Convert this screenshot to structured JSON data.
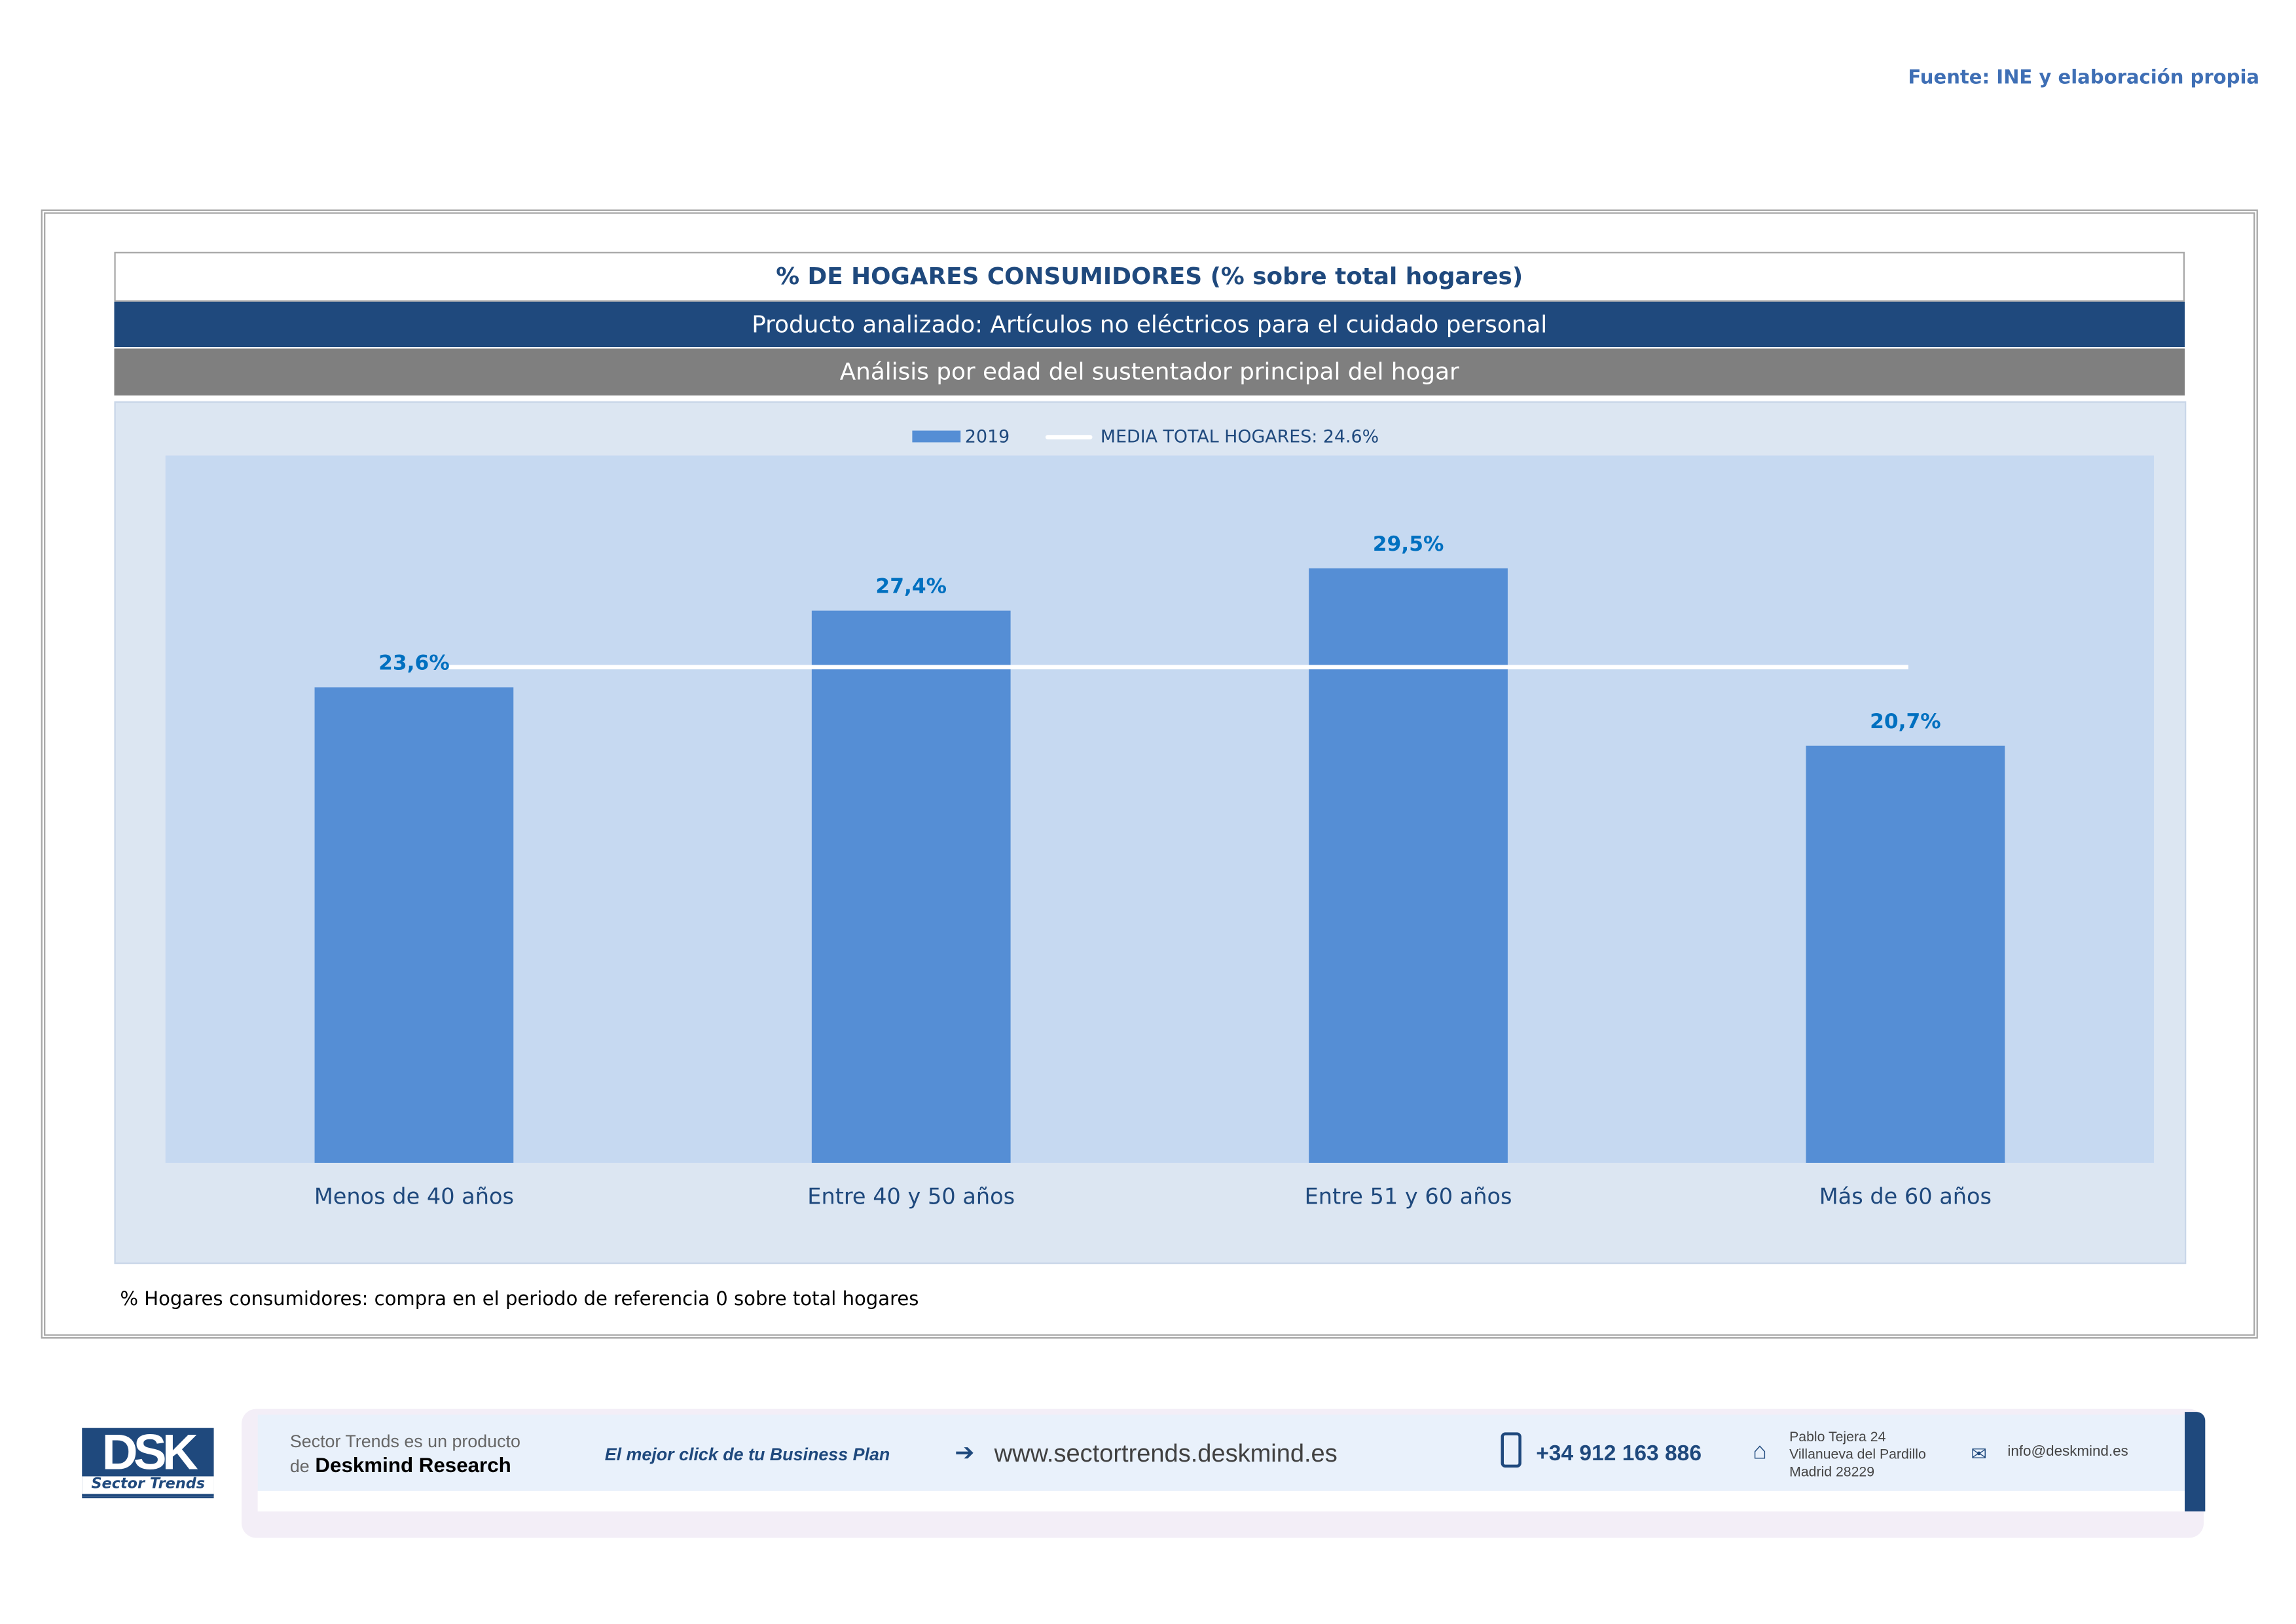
{
  "source": "Fuente: INE y elaboración propia",
  "header": {
    "title": "% DE HOGARES CONSUMIDORES (% sobre total hogares)",
    "product": "Producto analizado: Artículos no eléctricos para el cuidado personal",
    "analysis": "Análisis por edad del sustentador principal del hogar"
  },
  "chart_data": {
    "type": "bar",
    "title": "% DE HOGARES CONSUMIDORES (% sobre total hogares)",
    "categories": [
      "Menos de 40 años",
      "Entre 40 y 50 años",
      "Entre 51  y 60 años",
      "Más de 60 años"
    ],
    "series": [
      {
        "name": "2019",
        "values": [
          23.6,
          27.4,
          29.5,
          20.7
        ],
        "labels": [
          "23,6%",
          "27,4%",
          "29,5%",
          "20,7%"
        ],
        "color": "#558ed5"
      }
    ],
    "reference_line": {
      "name": "MEDIA TOTAL  HOGARES:  24.6%",
      "value": 24.6,
      "color": "#ffffff"
    },
    "ylim": [
      0,
      35.1
    ],
    "grid": false,
    "legend": "top-center",
    "xlabel": "",
    "ylabel": ""
  },
  "note": "% Hogares consumidores: compra en el periodo de referencia 0 sobre total hogares",
  "footer": {
    "logo": "DSK",
    "logo_sub": "Sector Trends",
    "product_line1": "Sector Trends es un producto",
    "product_de": "de",
    "product_company": "Deskmind Research",
    "slogan": "El mejor click de tu Business Plan",
    "website": "www.sectortrends.deskmind.es",
    "phone": "+34 912 163 886",
    "address1": "Pablo Tejera 24",
    "address2": "Villanueva del Pardillo",
    "address3": "Madrid 28229",
    "email": "info@deskmind.es"
  }
}
